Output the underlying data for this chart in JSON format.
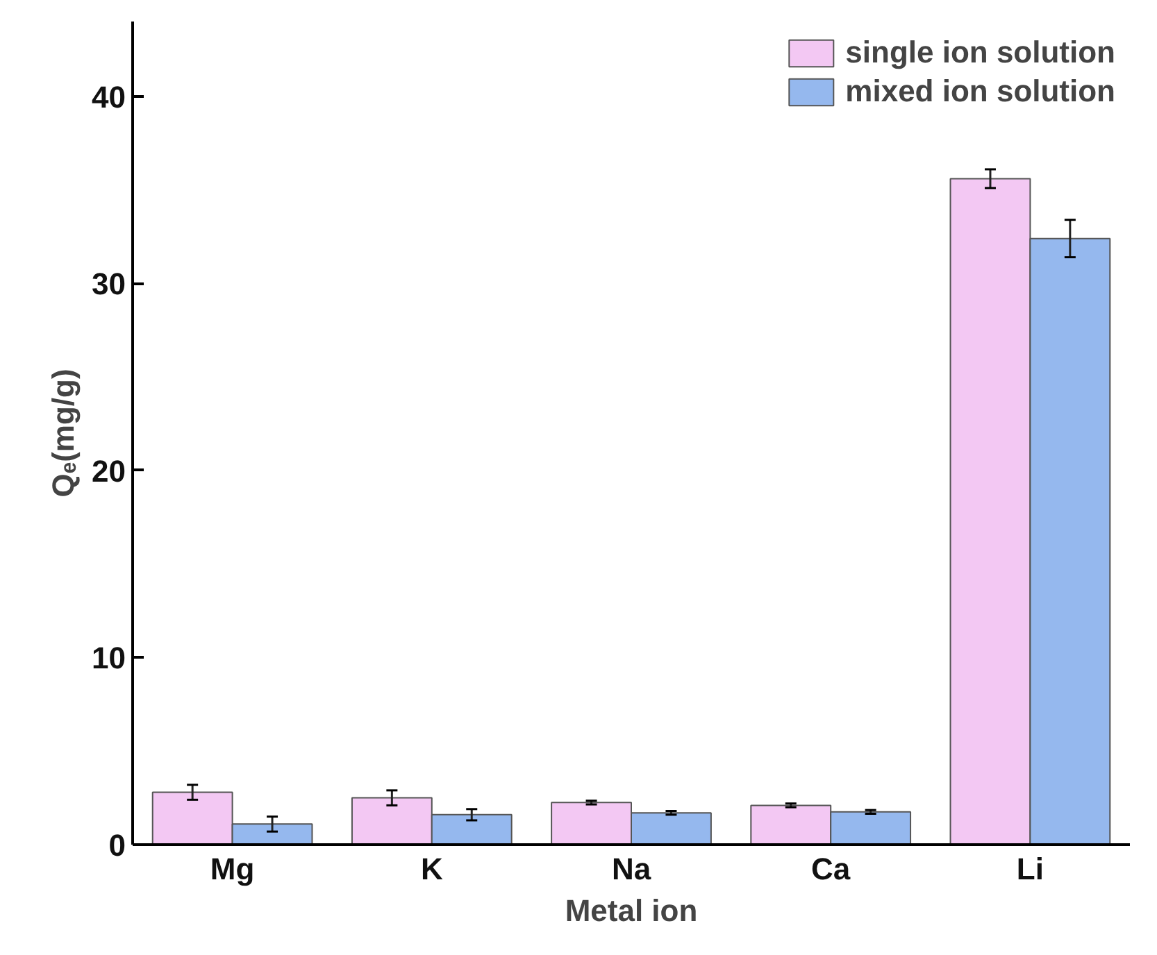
{
  "chart_data": {
    "type": "bar",
    "xlabel": "Metal ion",
    "ylabel": "Qₑ(mg/g)",
    "categories": [
      "Mg",
      "K",
      "Na",
      "Ca",
      "Li"
    ],
    "series": [
      {
        "name": "single ion solution",
        "color": "#f3c8f3",
        "values": [
          2.8,
          2.5,
          2.25,
          2.1,
          35.6
        ],
        "errors": [
          0.4,
          0.4,
          0.1,
          0.1,
          0.5
        ]
      },
      {
        "name": "mixed ion solution",
        "color": "#95b8ee",
        "values": [
          1.1,
          1.6,
          1.7,
          1.75,
          32.4
        ],
        "errors": [
          0.4,
          0.3,
          0.1,
          0.1,
          1.0
        ]
      }
    ],
    "ylim": [
      0,
      44
    ],
    "yticks": [
      0,
      10,
      20,
      30,
      40
    ],
    "grid": false,
    "legend": "top right"
  }
}
